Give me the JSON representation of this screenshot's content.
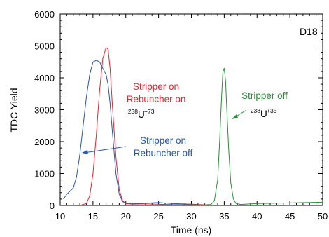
{
  "chart_data": {
    "type": "line",
    "xlabel": "Time (ns)",
    "ylabel": "TDC Yield",
    "xlim": [
      10,
      50
    ],
    "ylim": [
      0,
      6000
    ],
    "x_ticks": [
      10,
      15,
      20,
      25,
      30,
      35,
      40,
      45,
      50
    ],
    "y_ticks": [
      0,
      1000,
      2000,
      3000,
      4000,
      5000,
      6000
    ],
    "grid": false,
    "panel_label": "D18",
    "series": [
      {
        "label_lines": [
          "Stripper on",
          "Rebuncher off"
        ],
        "color": "#2a55a8",
        "x": [
          10.5,
          11.0,
          12.0,
          12.5,
          13.0,
          13.5,
          14.0,
          14.5,
          15.0,
          15.5,
          16.0,
          16.5,
          17.0,
          17.3,
          17.6,
          18.0,
          18.5,
          19.0,
          19.5,
          20.0,
          21.0,
          23.0,
          25.0,
          27.0,
          30.0,
          32.0
        ],
        "y": [
          200,
          350,
          550,
          900,
          1600,
          2500,
          3400,
          4100,
          4500,
          4550,
          4500,
          4300,
          4100,
          3800,
          3200,
          2200,
          1000,
          350,
          120,
          80,
          50,
          70,
          90,
          60,
          40,
          20
        ]
      },
      {
        "label_lines": [
          "Stripper on",
          "Rebuncher on"
        ],
        "ion": {
          "base": "U",
          "mass": "238",
          "charge": "+73"
        },
        "color": "#e8212d",
        "x": [
          13.0,
          14.0,
          14.5,
          15.0,
          15.5,
          16.0,
          16.5,
          17.0,
          17.3,
          17.6,
          18.0,
          18.5,
          19.0,
          19.5,
          20.0,
          21.0,
          23.0,
          26.0,
          30.0,
          33.0
        ],
        "y": [
          0,
          60,
          300,
          1000,
          2200,
          3600,
          4600,
          4950,
          4900,
          4300,
          3000,
          1500,
          500,
          150,
          60,
          40,
          50,
          30,
          20,
          10
        ]
      },
      {
        "label_lines": [
          "Stripper off"
        ],
        "ion": {
          "base": "U",
          "mass": "238",
          "charge": "+35"
        },
        "color": "#2e8b3a",
        "x": [
          32.0,
          33.0,
          33.5,
          34.0,
          34.3,
          34.6,
          34.8,
          35.0,
          35.2,
          35.4,
          35.7,
          36.0,
          36.4,
          36.8,
          37.5,
          40.0,
          45.0,
          50.0
        ],
        "y": [
          20,
          30,
          150,
          800,
          2000,
          3400,
          4200,
          4300,
          3900,
          3000,
          1700,
          700,
          200,
          60,
          30,
          60,
          80,
          100
        ]
      }
    ]
  }
}
